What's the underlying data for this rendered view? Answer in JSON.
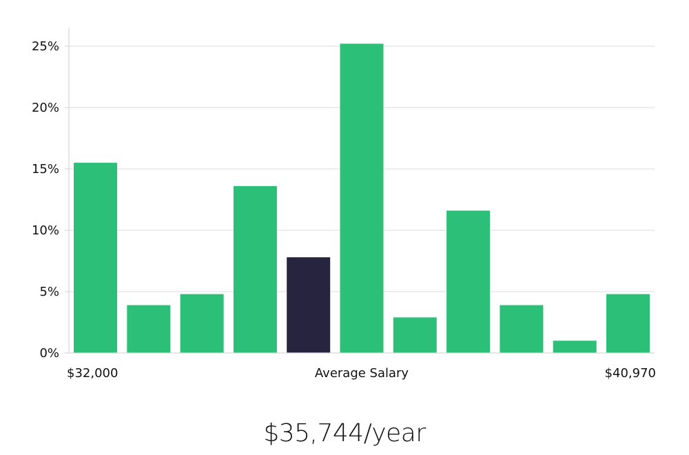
{
  "colors": {
    "bar": "#2bbf78",
    "highlight": "#27243f",
    "grid": "#e2e2e2",
    "axis": "#d6d6d6"
  },
  "chart_data": {
    "type": "bar",
    "categories": [
      "1",
      "2",
      "3",
      "4",
      "5",
      "6",
      "7",
      "8",
      "9",
      "10",
      "11"
    ],
    "values": [
      15.5,
      3.9,
      4.8,
      13.6,
      7.8,
      25.2,
      2.9,
      11.6,
      3.9,
      1.0,
      4.8
    ],
    "highlight_index": 4,
    "ylim": [
      0,
      26.5
    ],
    "yticks": [
      0,
      5,
      10,
      15,
      20,
      25
    ],
    "ytick_labels": [
      "0%",
      "5%",
      "10%",
      "15%",
      "20%",
      "25%"
    ],
    "grid": true,
    "x_min_label": "$32,000",
    "x_center_label": "Average Salary",
    "x_max_label": "$40,970"
  },
  "salary_text": "$35,744/year"
}
